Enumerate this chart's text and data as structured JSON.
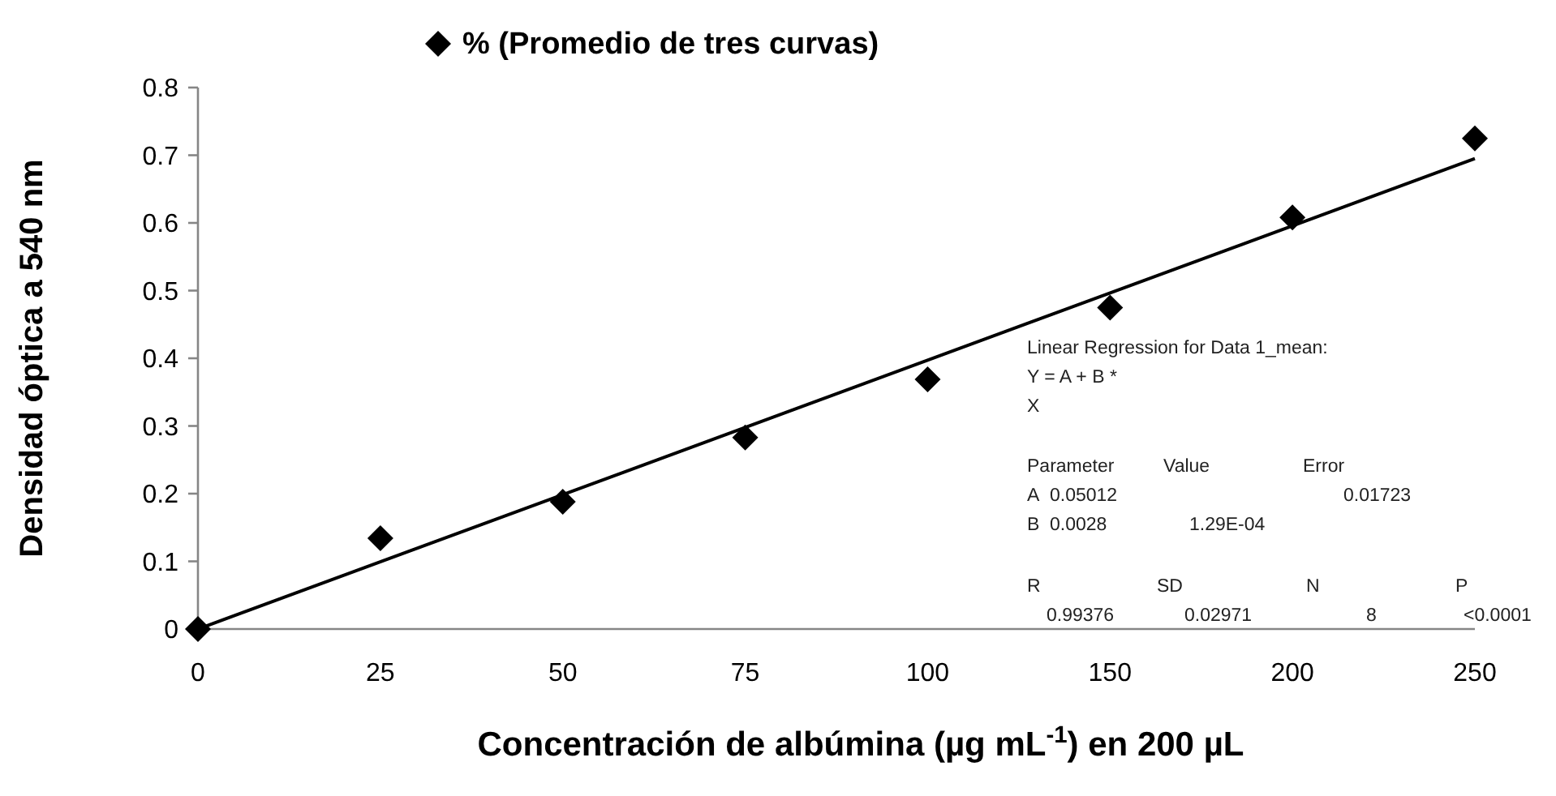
{
  "chart_data": {
    "type": "scatter",
    "categories": [
      "0",
      "25",
      "50",
      "75",
      "100",
      "150",
      "200",
      "250"
    ],
    "series": [
      {
        "name": "% (Promedio de tres curvas)",
        "color": "#000000",
        "marker": "diamond",
        "values": [
          0,
          0.134,
          0.188,
          0.283,
          0.369,
          0.475,
          0.608,
          0.725
        ]
      },
      {
        "color": "#000000",
        "type": "line",
        "marker": "none",
        "line_style": "solid",
        "x": [
          "0",
          "250"
        ],
        "values": [
          0,
          0.695
        ]
      }
    ],
    "xlabel": "Concentración de albúmina (µg mL$^{-1}$) en 200 µL",
    "ylabel": "Densidad óptica a 540 nm",
    "ylim": [
      0,
      0.8
    ],
    "yticks": [
      0,
      0.1,
      0.2,
      0.3,
      0.4,
      0.5,
      0.6,
      0.7,
      0.8
    ],
    "grid": false,
    "legend": "top",
    "annotations": [
      "Linear Regression for Data 1_mean:",
      "Y = A + B *",
      "X",
      "Parameter",
      "Value",
      "Error",
      "A",
      "0.05012",
      "0.01723",
      "B",
      "0.0028",
      "1.29E-04",
      "R",
      "SD",
      "N",
      "P",
      "0.99376",
      "0.02971",
      "8",
      "<0.0001"
    ]
  }
}
